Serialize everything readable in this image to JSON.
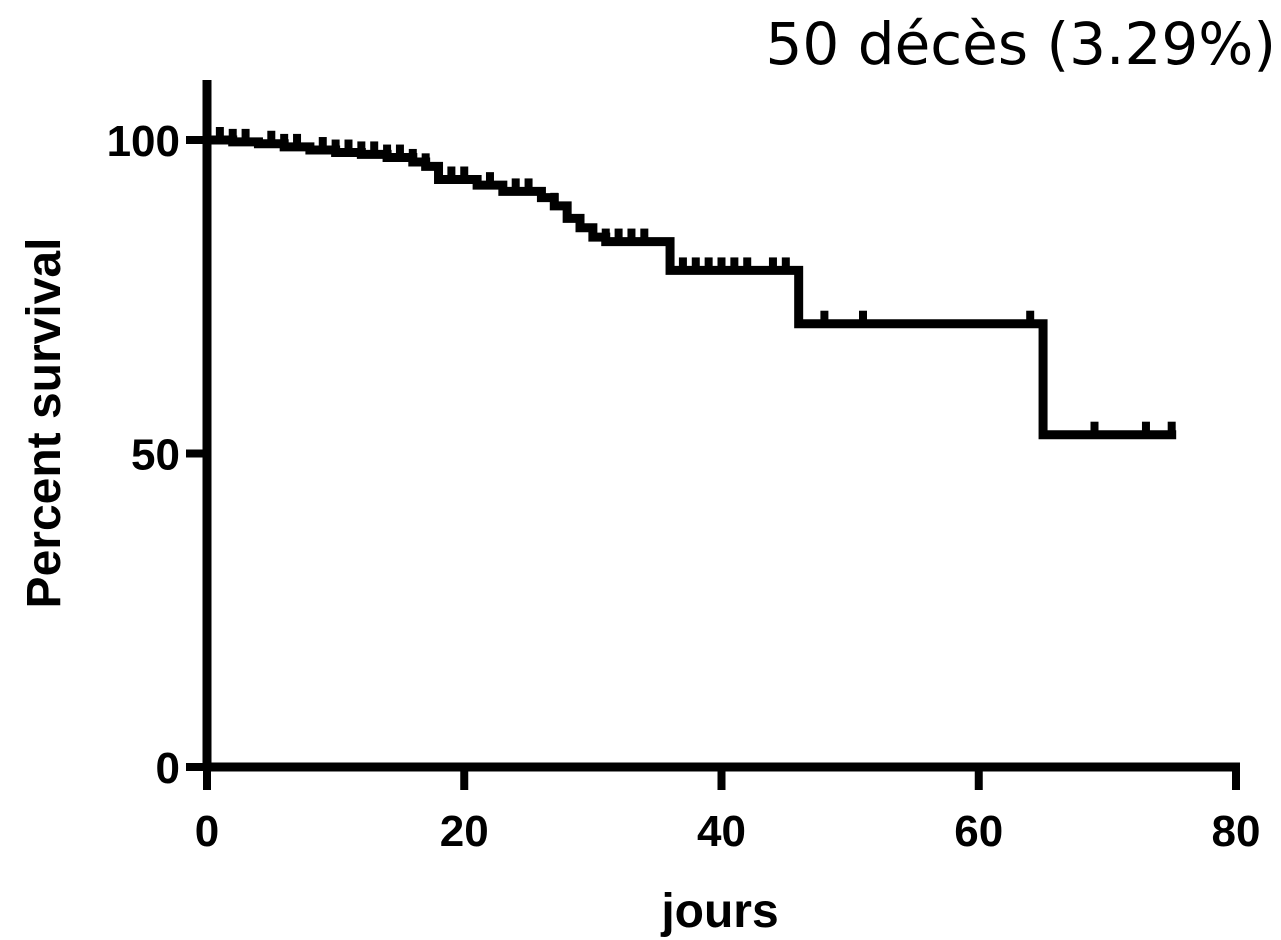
{
  "chart_data": {
    "type": "line",
    "subtype": "kaplan-meier survival curve",
    "annotation": "50 décès (3.29%)",
    "xlabel": "jours",
    "ylabel": "Percent survival",
    "xlim": [
      0,
      80
    ],
    "ylim": [
      0,
      100
    ],
    "xticks": [
      0,
      20,
      40,
      60,
      80
    ],
    "yticks": [
      0,
      50,
      100
    ],
    "xtick_labels": [
      "0",
      "20",
      "40",
      "60",
      "80"
    ],
    "ytick_labels": [
      "0",
      "50",
      "100"
    ],
    "grid": false,
    "legend": "none",
    "line_color": "#000000",
    "series": [
      {
        "step": [
          [
            0,
            100
          ],
          [
            2,
            99.7
          ],
          [
            4,
            99.4
          ],
          [
            6,
            98.9
          ],
          [
            8,
            98.4
          ],
          [
            10,
            98.0
          ],
          [
            12,
            97.7
          ],
          [
            14,
            97.2
          ],
          [
            16,
            96.5
          ],
          [
            17,
            95.8
          ],
          [
            18,
            93.7
          ],
          [
            21,
            92.8
          ],
          [
            23,
            91.8
          ],
          [
            26,
            90.8
          ],
          [
            27,
            89.5
          ],
          [
            28,
            87.5
          ],
          [
            29,
            86.0
          ],
          [
            30,
            84.5
          ],
          [
            31,
            83.8
          ],
          [
            36,
            79.2
          ],
          [
            46,
            70.7
          ],
          [
            65,
            53.0
          ],
          [
            75,
            53.0
          ]
        ],
        "censored": [
          [
            1,
            100
          ],
          [
            2,
            99.7
          ],
          [
            3,
            99.7
          ],
          [
            5,
            99.4
          ],
          [
            6,
            98.9
          ],
          [
            7,
            98.9
          ],
          [
            9,
            98.4
          ],
          [
            10,
            98.0
          ],
          [
            11,
            98.0
          ],
          [
            12,
            97.7
          ],
          [
            13,
            97.7
          ],
          [
            14,
            97.2
          ],
          [
            15,
            97.2
          ],
          [
            16,
            96.5
          ],
          [
            17,
            95.8
          ],
          [
            19,
            93.7
          ],
          [
            20,
            93.7
          ],
          [
            22,
            92.8
          ],
          [
            24,
            91.8
          ],
          [
            25,
            91.8
          ],
          [
            27,
            89.5
          ],
          [
            29,
            86.0
          ],
          [
            31,
            83.8
          ],
          [
            32,
            83.8
          ],
          [
            33,
            83.8
          ],
          [
            34,
            83.8
          ],
          [
            37,
            79.2
          ],
          [
            38,
            79.2
          ],
          [
            39,
            79.2
          ],
          [
            40,
            79.2
          ],
          [
            41,
            79.2
          ],
          [
            42,
            79.2
          ],
          [
            44,
            79.2
          ],
          [
            45,
            79.2
          ],
          [
            48,
            70.7
          ],
          [
            51,
            70.7
          ],
          [
            64,
            70.7
          ],
          [
            69,
            53.0
          ],
          [
            73,
            53.0
          ],
          [
            75,
            53.0
          ]
        ]
      }
    ]
  }
}
